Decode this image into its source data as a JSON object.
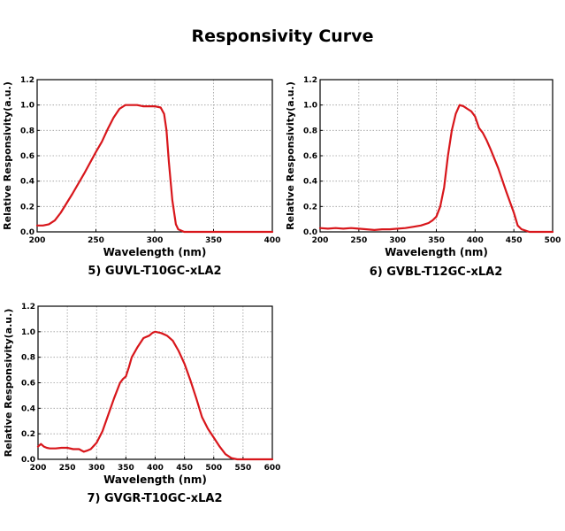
{
  "page": {
    "title": "Responsivity Curve"
  },
  "colors": {
    "curve": "#d8161b",
    "grid": "#9a9a9a",
    "axis": "#000000"
  },
  "chart_data": [
    {
      "type": "line",
      "caption": "5) GUVL-T10GC-xLA2",
      "xlabel": "Wavelength (nm)",
      "ylabel": "Relative Responsivity(a.u.)",
      "xlim": [
        200,
        400
      ],
      "ylim": [
        0,
        1.2
      ],
      "xticks": [
        "200",
        "250",
        "300",
        "350",
        "400"
      ],
      "yticks": [
        "0.0",
        "0.2",
        "0.4",
        "0.6",
        "0.8",
        "1.0",
        "1.2"
      ],
      "grid": true,
      "series": [
        {
          "name": "GUVL-T10GC-xLA2",
          "x": [
            200,
            205,
            210,
            215,
            220,
            230,
            240,
            250,
            255,
            260,
            265,
            270,
            275,
            280,
            285,
            290,
            295,
            300,
            305,
            308,
            310,
            312,
            315,
            318,
            320,
            325,
            330,
            340,
            350,
            400
          ],
          "y": [
            0.05,
            0.05,
            0.06,
            0.09,
            0.15,
            0.3,
            0.46,
            0.63,
            0.71,
            0.81,
            0.9,
            0.97,
            1.0,
            1.0,
            1.0,
            0.99,
            0.99,
            0.99,
            0.98,
            0.93,
            0.8,
            0.55,
            0.25,
            0.06,
            0.02,
            0.0,
            0.0,
            0.0,
            0.0,
            0.0
          ]
        }
      ]
    },
    {
      "type": "line",
      "caption": "6) GVBL-T12GC-xLA2",
      "xlabel": "Wavelength (nm)",
      "ylabel": "Relative Responsivity(a.u.)",
      "xlim": [
        200,
        500
      ],
      "ylim": [
        0,
        1.2
      ],
      "xticks": [
        "200",
        "250",
        "300",
        "350",
        "400",
        "450",
        "500"
      ],
      "yticks": [
        "0.0",
        "0.2",
        "0.4",
        "0.6",
        "0.8",
        "1.0",
        "1.2"
      ],
      "grid": true,
      "series": [
        {
          "name": "GVBL-T12GC-xLA2",
          "x": [
            200,
            210,
            220,
            230,
            240,
            250,
            260,
            270,
            280,
            290,
            300,
            310,
            320,
            330,
            340,
            345,
            350,
            355,
            360,
            365,
            370,
            375,
            380,
            385,
            390,
            395,
            400,
            405,
            410,
            415,
            420,
            430,
            440,
            450,
            455,
            460,
            470,
            500
          ],
          "y": [
            0.03,
            0.025,
            0.03,
            0.025,
            0.03,
            0.025,
            0.02,
            0.015,
            0.02,
            0.02,
            0.025,
            0.03,
            0.04,
            0.05,
            0.07,
            0.09,
            0.12,
            0.2,
            0.35,
            0.6,
            0.8,
            0.93,
            1.0,
            0.99,
            0.97,
            0.95,
            0.91,
            0.82,
            0.78,
            0.72,
            0.65,
            0.5,
            0.32,
            0.15,
            0.05,
            0.02,
            0.0,
            0.0
          ]
        }
      ]
    },
    {
      "type": "line",
      "caption": "7) GVGR-T10GC-xLA2",
      "xlabel": "Wavelength (nm)",
      "ylabel": "Relative Responsivity(a.u.)",
      "xlim": [
        200,
        600
      ],
      "ylim": [
        0,
        1.2
      ],
      "xticks": [
        "200",
        "250",
        "300",
        "350",
        "400",
        "450",
        "500",
        "550",
        "600"
      ],
      "yticks": [
        "0.0",
        "0.2",
        "0.4",
        "0.6",
        "0.8",
        "1.0",
        "1.2"
      ],
      "grid": true,
      "series": [
        {
          "name": "GVGR-T10GC-xLA2",
          "x": [
            200,
            205,
            210,
            215,
            220,
            230,
            240,
            250,
            260,
            270,
            278,
            285,
            290,
            300,
            310,
            320,
            330,
            340,
            345,
            350,
            355,
            360,
            365,
            370,
            380,
            390,
            395,
            400,
            410,
            415,
            420,
            430,
            440,
            450,
            460,
            470,
            480,
            490,
            500,
            510,
            520,
            530,
            540,
            560,
            580,
            600
          ],
          "y": [
            0.1,
            0.12,
            0.1,
            0.09,
            0.085,
            0.085,
            0.09,
            0.09,
            0.08,
            0.08,
            0.06,
            0.07,
            0.08,
            0.13,
            0.22,
            0.35,
            0.48,
            0.6,
            0.63,
            0.65,
            0.72,
            0.8,
            0.84,
            0.88,
            0.95,
            0.97,
            0.99,
            1.0,
            0.99,
            0.98,
            0.97,
            0.93,
            0.85,
            0.75,
            0.62,
            0.48,
            0.33,
            0.24,
            0.17,
            0.1,
            0.04,
            0.01,
            0.0,
            0.0,
            0.0,
            0.0
          ]
        }
      ]
    }
  ]
}
